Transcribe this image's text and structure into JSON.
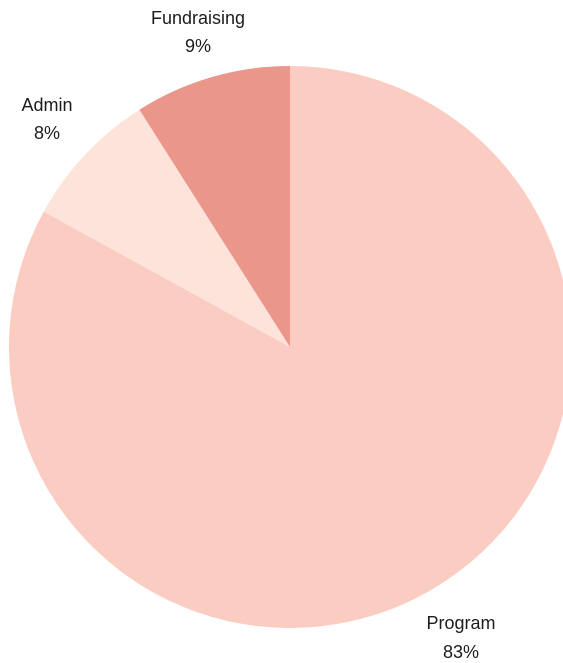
{
  "chart_data": {
    "type": "pie",
    "start_angle": "12 o'clock, clockwise",
    "slices": [
      {
        "label": "Program",
        "value": 83,
        "value_label": "83%",
        "color": "#fbccc2"
      },
      {
        "label": "Admin",
        "value": 8,
        "value_label": "8%",
        "color": "#fde3da"
      },
      {
        "label": "Fundraising",
        "value": 9,
        "value_label": "9%",
        "color": "#ea968b"
      }
    ]
  }
}
